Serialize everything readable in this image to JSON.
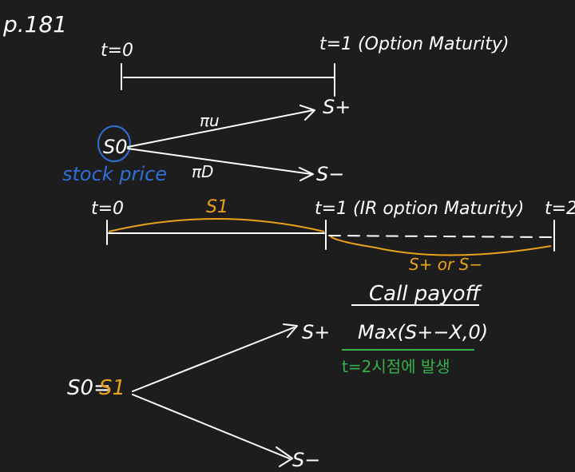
{
  "colors": {
    "background": "#1d1d1d",
    "ink_white": "#ffffff",
    "ink_blue": "#2f6fd6",
    "ink_orange": "#e8a21a",
    "ink_green": "#35b04a"
  },
  "page_ref": "p.181",
  "diagram1": {
    "t0": "t=0",
    "t1": "t=1 (Option Maturity)"
  },
  "tree1": {
    "s0": "S0",
    "pi_u": "πu",
    "pi_d": "πD",
    "s_up": "S+",
    "s_down": "S−",
    "stock_price_note": "stock price"
  },
  "diagram2": {
    "t0": "t=0",
    "t1": "t=1 (IR option Maturity)",
    "t2": "t=2",
    "s1": "S1",
    "s_or": "S+ or S−"
  },
  "payoff": {
    "title": "Call payoff",
    "formula": "Max(S+−X,0)",
    "note": "t=2시점에 발생"
  },
  "tree2": {
    "s0_eq": "S0=",
    "s1": "S1",
    "s_up": "S+",
    "s_down": "S−"
  }
}
